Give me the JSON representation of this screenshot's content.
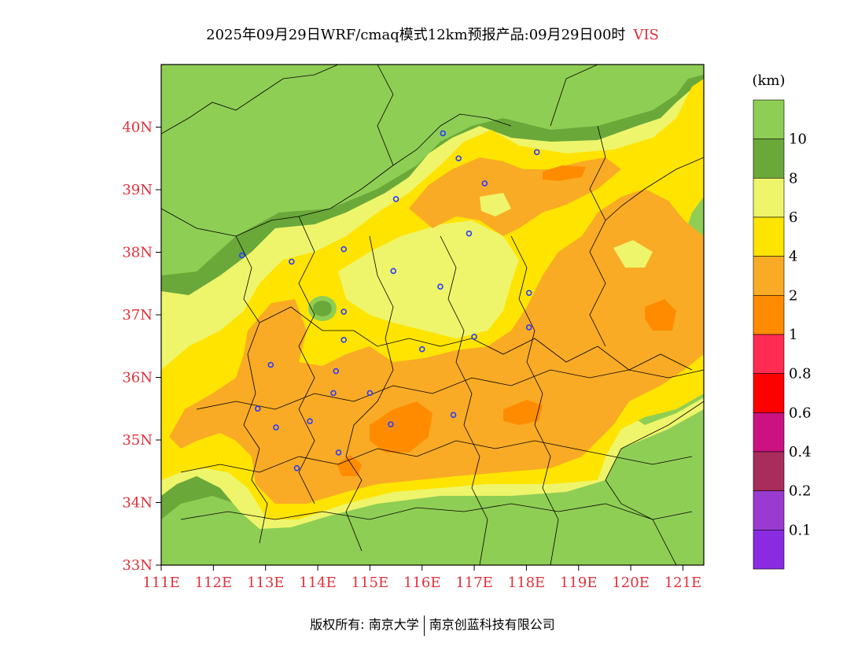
{
  "title": {
    "main": "2025年09月29日WRF/cmaq模式12km预报产品:09月29日00时",
    "variable": "VIS"
  },
  "legend": {
    "unit": "(km)",
    "labels": [
      "10",
      "8",
      "6",
      "4",
      "2",
      "1",
      "0.8",
      "0.6",
      "0.4",
      "0.2",
      "0.1"
    ],
    "colors": [
      "#8fce54",
      "#6aa83a",
      "#eef56a",
      "#ffe400",
      "#f9ab25",
      "#ff8c00",
      "#ff2b53",
      "#ff0000",
      "#cc1280",
      "#a82d5d",
      "#9a3bd0",
      "#8a2be2"
    ]
  },
  "map": {
    "lat_labels": [
      "33N",
      "34N",
      "35N",
      "36N",
      "37N",
      "38N",
      "39N",
      "40N"
    ],
    "lon_labels": [
      "111E",
      "112E",
      "113E",
      "114E",
      "115E",
      "116E",
      "117E",
      "118E",
      "119E",
      "120E",
      "121E"
    ],
    "lon_range": [
      111,
      121.4
    ],
    "lat_range": [
      33,
      41
    ],
    "stations": [
      [
        116.4,
        39.9
      ],
      [
        116.7,
        39.5
      ],
      [
        117.2,
        39.1
      ],
      [
        118.2,
        39.6
      ],
      [
        115.5,
        38.85
      ],
      [
        116.9,
        38.3
      ],
      [
        112.55,
        37.95
      ],
      [
        113.5,
        37.85
      ],
      [
        114.5,
        38.05
      ],
      [
        115.45,
        37.7
      ],
      [
        116.35,
        37.45
      ],
      [
        118.05,
        37.35
      ],
      [
        114.5,
        37.05
      ],
      [
        114.5,
        36.6
      ],
      [
        116.0,
        36.45
      ],
      [
        117.0,
        36.65
      ],
      [
        118.05,
        36.8
      ],
      [
        113.1,
        36.2
      ],
      [
        114.35,
        36.1
      ],
      [
        114.3,
        35.75
      ],
      [
        115.0,
        35.75
      ],
      [
        112.85,
        35.5
      ],
      [
        113.2,
        35.2
      ],
      [
        113.85,
        35.3
      ],
      [
        115.4,
        35.25
      ],
      [
        116.6,
        35.4
      ],
      [
        114.4,
        34.8
      ],
      [
        113.6,
        34.55
      ]
    ]
  },
  "credit": {
    "left": "版权所有: 南京大学",
    "right": "南京创蓝科技有限公司"
  }
}
